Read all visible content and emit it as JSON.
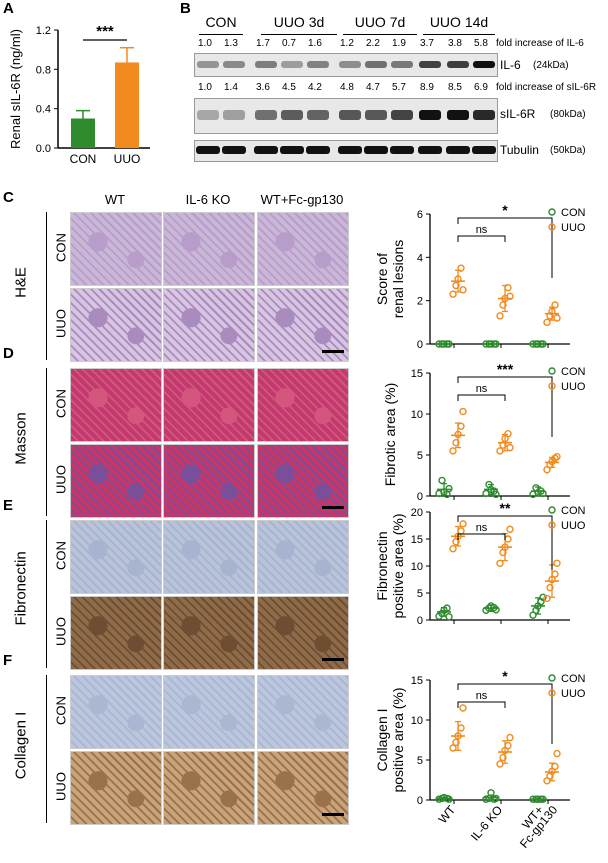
{
  "panels": {
    "A": {
      "label": "A",
      "chart_data": {
        "type": "bar",
        "ylabel": "Renal sIL-6R (ng/ml)",
        "categories": [
          "CON",
          "UUO"
        ],
        "values": [
          0.3,
          0.87
        ],
        "errors": [
          0.08,
          0.15
        ],
        "colors": [
          "#2e8b2e",
          "#f28b1e"
        ],
        "ylim": [
          0,
          1.2
        ],
        "yticks": [
          "0.0",
          "0.4",
          "0.8",
          "1.2"
        ],
        "significance": "***"
      }
    },
    "B": {
      "label": "B",
      "groups": [
        "CON",
        "UUO  3d",
        "UUO  7d",
        "UUO  14d"
      ],
      "il6_fold": [
        "1.0",
        "1.3",
        "1.7",
        "0.7",
        "1.6",
        "1.2",
        "2.2",
        "1.9",
        "3.7",
        "3.8",
        "5.8"
      ],
      "il6_fold_label": "fold increase of IL-6",
      "sil6r_fold": [
        "1.0",
        "1.4",
        "3.6",
        "4.5",
        "4.2",
        "4.8",
        "4.7",
        "5.7",
        "8.9",
        "8.5",
        "6.9"
      ],
      "sil6r_fold_label": "fold increase of sIL-6R",
      "bands": [
        {
          "name": "IL-6",
          "size": "(24kDa)"
        },
        {
          "name": "sIL-6R",
          "size": "(80kDa)"
        },
        {
          "name": "Tubulin",
          "size": "(50kDa)"
        }
      ]
    },
    "columns": [
      "WT",
      "IL-6 KO",
      "WT+Fc-gp130"
    ],
    "rows": [
      "CON",
      "UUO"
    ],
    "stains": [
      {
        "label": "C",
        "stain": "H&E"
      },
      {
        "label": "D",
        "stain": "Masson"
      },
      {
        "label": "E",
        "stain": "Fibronectin"
      },
      {
        "label": "F",
        "stain": "Collagen I"
      }
    ],
    "legend": {
      "con": "CON",
      "uuo": "UUO"
    },
    "scatter_charts": [
      {
        "type": "scatter",
        "ylabel": [
          "Score of",
          "renal lesions"
        ],
        "ylim": [
          0,
          6
        ],
        "yticks": [
          "0",
          "2",
          "4",
          "6"
        ],
        "comparisons": [
          {
            "label": "ns"
          },
          {
            "label": "*"
          }
        ],
        "series": [
          {
            "name": "CON",
            "means": [
              0,
              0,
              0
            ],
            "sd": [
              0,
              0,
              0
            ],
            "points": [
              [
                0,
                0,
                0,
                0,
                0
              ],
              [
                0,
                0,
                0,
                0,
                0
              ],
              [
                0,
                0,
                0,
                0,
                0
              ]
            ]
          },
          {
            "name": "UUO",
            "means": [
              2.9,
              2.1,
              1.4
            ],
            "sd": [
              0.5,
              0.6,
              0.3
            ],
            "points": [
              [
                2.3,
                2.7,
                3.0,
                3.5,
                2.5
              ],
              [
                1.3,
                1.8,
                2.1,
                2.6,
                2.2
              ],
              [
                1.0,
                1.3,
                1.5,
                1.8,
                1.2
              ]
            ]
          }
        ]
      },
      {
        "type": "scatter",
        "ylabel": [
          "Fibrotic area (%)"
        ],
        "ylim": [
          0,
          15
        ],
        "yticks": [
          "0",
          "5",
          "10",
          "15"
        ],
        "comparisons": [
          {
            "label": "ns"
          },
          {
            "label": "***"
          }
        ],
        "series": [
          {
            "name": "CON",
            "means": [
              0.8,
              0.8,
              0.6
            ],
            "sd": [
              0.7,
              0.6,
              0.5
            ],
            "points": [
              [
                0.3,
                1.9,
                0.5,
                0.2,
                0.9
              ],
              [
                0.3,
                1.4,
                0.8,
                0.6,
                0.2
              ],
              [
                0.2,
                1.0,
                0.4,
                0.6,
                0.3
              ]
            ]
          },
          {
            "name": "UUO",
            "means": [
              7.4,
              6.5,
              4.1
            ],
            "sd": [
              1.5,
              1.0,
              0.6
            ],
            "points": [
              [
                5.5,
                6.5,
                7.5,
                8.5,
                10.3
              ],
              [
                5.5,
                6.2,
                7.0,
                7.6,
                5.9
              ],
              [
                3.2,
                3.8,
                4.2,
                4.6,
                4.8
              ]
            ]
          }
        ]
      },
      {
        "type": "scatter",
        "ylabel": [
          "Fibronectin",
          "positive area (%)"
        ],
        "ylim": [
          0,
          20
        ],
        "yticks": [
          "0",
          "5",
          "10",
          "15",
          "20"
        ],
        "comparisons": [
          {
            "label": "ns"
          },
          {
            "label": "**"
          }
        ],
        "series": [
          {
            "name": "CON",
            "means": [
              1.5,
              2.2,
              2.6
            ],
            "sd": [
              0.8,
              0.6,
              1.5
            ],
            "points": [
              [
                0.7,
                1.2,
                1.8,
                2.2,
                0.6
              ],
              [
                1.8,
                2.2,
                2.6,
                2.3,
                1.9
              ],
              [
                0.9,
                1.8,
                2.6,
                3.4,
                4.2
              ]
            ]
          },
          {
            "name": "UUO",
            "means": [
              15.5,
              13.5,
              7.2
            ],
            "sd": [
              1.8,
              2.5,
              3.0
            ],
            "points": [
              [
                13.2,
                14.5,
                15.5,
                16.5,
                17.8
              ],
              [
                10.5,
                12.5,
                13.5,
                15.0,
                16.8
              ],
              [
                4.0,
                6.0,
                7.5,
                8.5,
                10.5
              ]
            ]
          }
        ]
      },
      {
        "type": "scatter",
        "ylabel": [
          "Collagen I",
          "positive area (%)"
        ],
        "ylim": [
          0,
          15
        ],
        "yticks": [
          "0",
          "5",
          "10",
          "15"
        ],
        "xlabels": [
          "WT",
          "IL-6 KO",
          "WT+ Fc-gp130"
        ],
        "comparisons": [
          {
            "label": "ns"
          },
          {
            "label": "*"
          }
        ],
        "series": [
          {
            "name": "CON",
            "means": [
              0.2,
              0.3,
              0.1
            ],
            "sd": [
              0.1,
              0.3,
              0.1
            ],
            "points": [
              [
                0.1,
                0.2,
                0.3,
                0.2,
                0.1
              ],
              [
                0.1,
                0.2,
                0.9,
                0.1,
                0.2
              ],
              [
                0.1,
                0.1,
                0.1,
                0.1,
                0.1
              ]
            ]
          },
          {
            "name": "UUO",
            "means": [
              8.0,
              6.0,
              3.5
            ],
            "sd": [
              1.8,
              1.4,
              1.1
            ],
            "points": [
              [
                6.5,
                7.2,
                8.0,
                9.0,
                11.5
              ],
              [
                4.5,
                5.3,
                6.2,
                6.8,
                7.8
              ],
              [
                2.4,
                3.0,
                3.6,
                4.2,
                5.8
              ]
            ]
          }
        ]
      }
    ]
  }
}
